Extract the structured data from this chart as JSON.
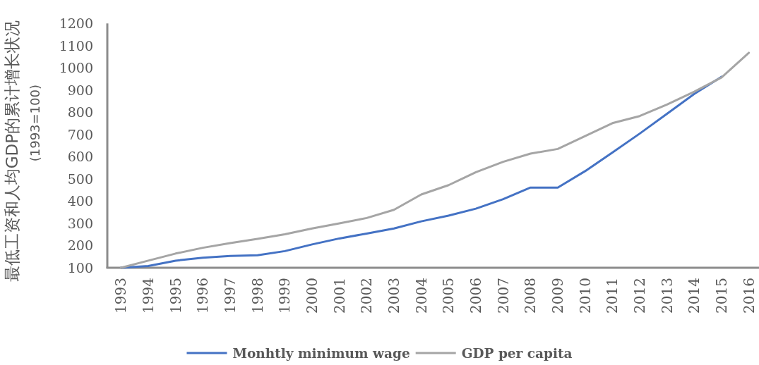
{
  "chart_data": {
    "type": "line",
    "ylabel": "最低工资和人均GDP的累计增长状况 (1993=100)",
    "categories": [
      "1993",
      "1994",
      "1995",
      "1996",
      "1997",
      "1998",
      "1999",
      "2000",
      "2001",
      "2002",
      "2003",
      "2004",
      "2005",
      "2006",
      "2007",
      "2008",
      "2009",
      "2010",
      "2011",
      "2012",
      "2013",
      "2014",
      "2015",
      "2016"
    ],
    "series": [
      {
        "name": "Monhtly minimum wage",
        "color": "#4472c4",
        "values": [
          100,
          108,
          132,
          145,
          153,
          156,
          175,
          205,
          232,
          254,
          277,
          309,
          335,
          366,
          409,
          461,
          461,
          535,
          619,
          704,
          793,
          883,
          960,
          null
        ]
      },
      {
        "name": "GDP per capita",
        "color": "#a5a5a5",
        "values": [
          100,
          132,
          164,
          190,
          211,
          230,
          251,
          277,
          300,
          324,
          361,
          430,
          472,
          530,
          577,
          614,
          635,
          693,
          751,
          783,
          835,
          893,
          957,
          1068
        ]
      }
    ],
    "ylim": [
      100,
      1200
    ],
    "yticks": [
      100,
      200,
      300,
      400,
      500,
      600,
      700,
      800,
      900,
      1000,
      1100,
      1200
    ],
    "legend": "bottom"
  }
}
